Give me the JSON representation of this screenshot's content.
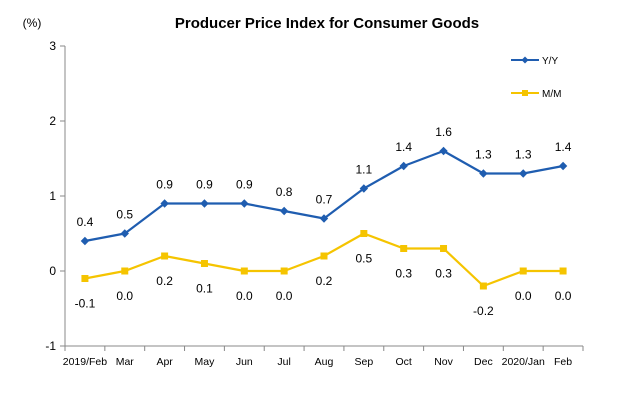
{
  "chart_data": {
    "type": "line",
    "title": "Producer Price Index for Consumer Goods",
    "ylabel": "(%)",
    "xlabel": "",
    "categories": [
      "2019/Feb",
      "Mar",
      "Apr",
      "May",
      "Jun",
      "Jul",
      "Aug",
      "Sep",
      "Oct",
      "Nov",
      "Dec",
      "2020/Jan",
      "Feb"
    ],
    "ylim": [
      -1,
      3
    ],
    "yticks": [
      "-1",
      "0",
      "1",
      "2",
      "3"
    ],
    "grid": false,
    "legend_position": "right",
    "series": [
      {
        "name": "Y/Y",
        "color": "#1F5DB0",
        "marker": "diamond",
        "values": [
          0.4,
          0.5,
          0.9,
          0.9,
          0.9,
          0.8,
          0.7,
          1.1,
          1.4,
          1.6,
          1.3,
          1.3,
          1.4
        ],
        "labels": [
          "0.4",
          "0.5",
          "0.9",
          "0.9",
          "0.9",
          "0.8",
          "0.7",
          "1.1",
          "1.4",
          "1.6",
          "1.3",
          "1.3",
          "1.4"
        ]
      },
      {
        "name": "M/M",
        "color": "#F5C400",
        "marker": "square",
        "values": [
          -0.1,
          0.0,
          0.2,
          0.1,
          0.0,
          0.0,
          0.2,
          0.5,
          0.3,
          0.3,
          -0.2,
          0.0,
          0.0
        ],
        "labels": [
          "-0.1",
          "0.0",
          "0.2",
          "0.1",
          "0.0",
          "0.0",
          "0.2",
          "0.5",
          "0.3",
          "0.3",
          "-0.2",
          "0.0",
          "0.0"
        ]
      }
    ]
  }
}
